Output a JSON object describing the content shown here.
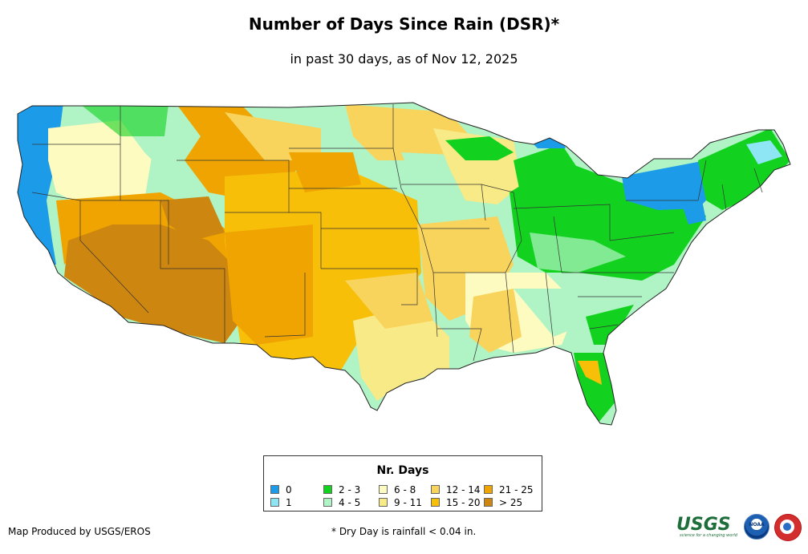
{
  "title": "Number of Days Since Rain (DSR)*",
  "subtitle": "in past 30 days, as of Nov 12, 2025",
  "legend": {
    "title": "Nr. Days",
    "items": [
      {
        "label": "0",
        "color": "#1b9be8"
      },
      {
        "label": "1",
        "color": "#8ee6f5"
      },
      {
        "label": "2 - 3",
        "color": "#12d21f"
      },
      {
        "label": "4 - 5",
        "color": "#b0f3c4"
      },
      {
        "label": "6 - 8",
        "color": "#fdfbc0"
      },
      {
        "label": "9 - 11",
        "color": "#f8ea86"
      },
      {
        "label": "12 - 14",
        "color": "#f9d45d"
      },
      {
        "label": "15 - 20",
        "color": "#f7bf08"
      },
      {
        "label": "21 - 25",
        "color": "#efa402"
      },
      {
        "label": "> 25",
        "color": "#cd860f"
      }
    ]
  },
  "footer": {
    "producer": "Map Produced by USGS/EROS",
    "note": "* Dry Day is rainfall < 0.04 in."
  },
  "logos": {
    "usgs": "USGS",
    "usgs_tagline": "science for a changing world",
    "noaa": "NOAA"
  }
}
